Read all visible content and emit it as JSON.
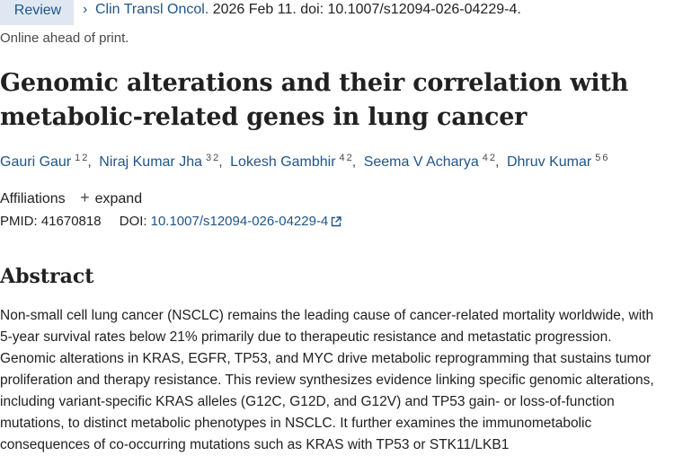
{
  "header": {
    "badge": "Review",
    "citation_chevron": "›",
    "journal": "Clin Transl Oncol.",
    "citation_rest": " 2026 Feb 11. doi: 10.1007/s12094-026-04229-4.",
    "print_status": "Online ahead of print."
  },
  "article": {
    "title": "Genomic alterations and their correlation with metabolic-related genes in lung cancer"
  },
  "authors": [
    {
      "name": "Gauri Gaur",
      "affs": [
        "1",
        "2"
      ]
    },
    {
      "name": "Niraj Kumar Jha",
      "affs": [
        "3",
        "2"
      ]
    },
    {
      "name": "Lokesh Gambhir",
      "affs": [
        "4",
        "2"
      ]
    },
    {
      "name": "Seema V Acharya",
      "affs": [
        "4",
        "2"
      ]
    },
    {
      "name": "Dhruv Kumar",
      "affs": [
        "5",
        "6"
      ]
    }
  ],
  "affiliations": {
    "label": "Affiliations",
    "expand_label": "expand",
    "plus": "+"
  },
  "ids": {
    "pmid_label": "PMID:",
    "pmid": "41670818",
    "doi_label": "DOI:",
    "doi": "10.1007/s12094-026-04229-4"
  },
  "abstract": {
    "heading": "Abstract",
    "text": "Non-small cell lung cancer (NSCLC) remains the leading cause of cancer-related mortality worldwide, with 5-year survival rates below 21% primarily due to therapeutic resistance and metastatic progression. Genomic alterations in KRAS, EGFR, TP53, and MYC drive metabolic reprogramming that sustains tumor proliferation and therapy resistance. This review synthesizes evidence linking specific genomic alterations, including variant-specific KRAS alleles (G12C, G12D, and G12V) and TP53 gain- or loss-of-function mutations, to distinct metabolic phenotypes in NSCLC. It further examines the immunometabolic consequences of co-occurring mutations such as KRAS with TP53 or STK11/LKB1"
  },
  "colors": {
    "link": "#20558a",
    "badge_bg": "#dfe8f2",
    "text": "#212121"
  }
}
